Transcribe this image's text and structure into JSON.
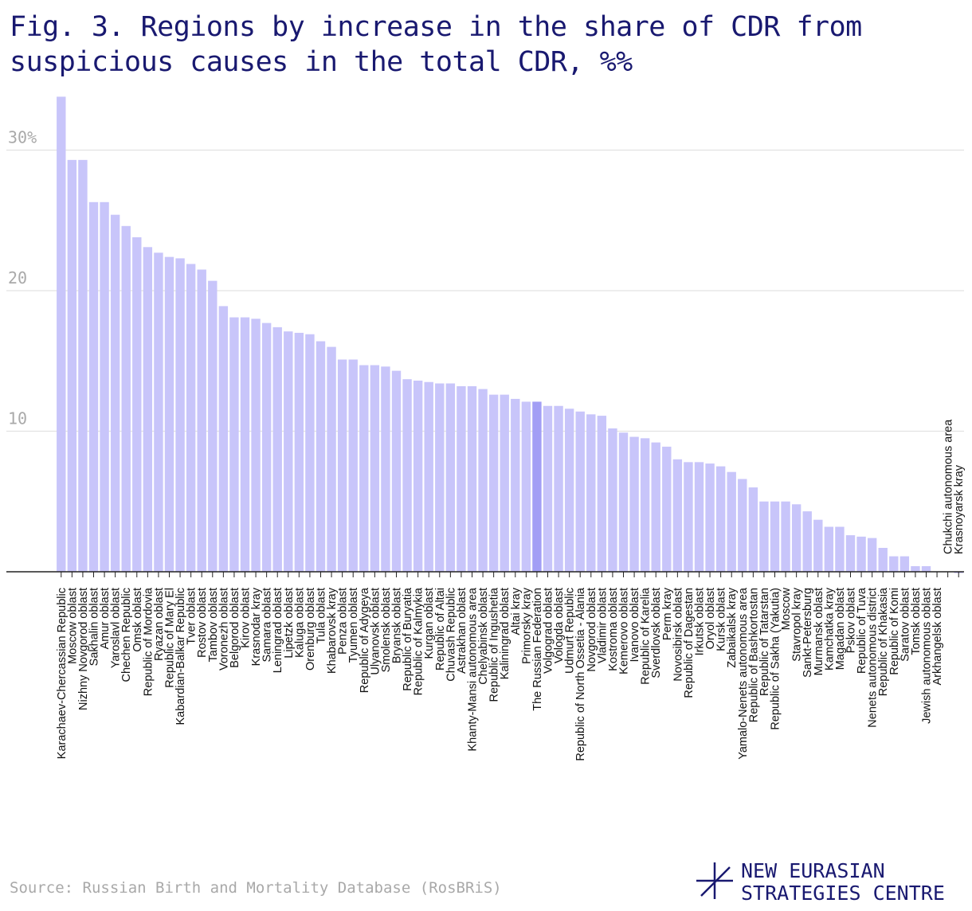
{
  "title": "Fig. 3. Regions by increase in the share of CDR from suspicious causes in the total CDR, %%",
  "source": "Source: Russian Birth and Mortality Database (RosBRiS)",
  "logo": {
    "line1": "NEW EURASIAN",
    "line2": "STRATEGIES CENTRE",
    "icon": "nesc-logo-icon"
  },
  "colors": {
    "bar": "#c8c5fa",
    "highlight": "#a29ef5",
    "title": "#191970",
    "grid": "#e2e2e2",
    "tick": "#a9a9a9",
    "axis": "#222222"
  },
  "chart_data": {
    "type": "bar",
    "title": "Fig. 3. Regions by increase in the share of CDR from suspicious causes in the total CDR, %%",
    "xlabel": "",
    "ylabel": "",
    "ylim": [
      0,
      34
    ],
    "yticks": [
      {
        "value": 10,
        "label": "10"
      },
      {
        "value": 20,
        "label": "20"
      },
      {
        "value": 30,
        "label": "30%"
      }
    ],
    "grid": true,
    "highlight": "The Russian Federation",
    "categories": [
      "Karachaev-Chercassian Republic",
      "Moscow oblast",
      "Nizhny Novgorod oblast",
      "Sakhalin oblast",
      "Amur oblast",
      "Yaroslavl oblast",
      "Chechen Republic",
      "Omsk oblast",
      "Republic of Mordovia",
      "Ryazan oblast",
      "Republic of Mary El",
      "Kabardian-Balkar Republic",
      "Tver oblast",
      "Rostov oblast",
      "Tambov oblast",
      "Voronezh oblast",
      "Belgorod oblast",
      "Kirov oblast",
      "Krasnodar kray",
      "Samara oblast",
      "Leningrad oblast",
      "Lipetzk oblast",
      "Kaluga oblast",
      "Orenburg oblast",
      "Tula oblast",
      "Khabarovsk kray",
      "Penza oblast",
      "Tyumen oblast",
      "Republic of Adygeya",
      "Ulyanovsk oblast",
      "Smolensk oblast",
      "Bryansk oblast",
      "Republic of Buryatia",
      "Republic of Kalmykia",
      "Kurgan oblast",
      "Republic of Altai",
      "Chuvash Republic",
      "Astrakhan oblast",
      "Khanty-Mansi autonomous area",
      "Chelyabinsk oblast",
      "Republic of Ingushetia",
      "Kaliningrad oblast",
      "Altai kray",
      "Primorsky kray",
      "The Russian Federation",
      "Volgograd oblast",
      "Vologda oblast",
      "Udmurt Republic",
      "Republic of North Ossetia - Alania",
      "Novgorod oblast",
      "Vladimir oblast",
      "Kostroma oblast",
      "Kemerovo oblast",
      "Ivanovo oblast",
      "Republic of Karelia",
      "Sverdlovsk oblast",
      "Perm kray",
      "Novosibirsk oblast",
      "Republic of Dagestan",
      "Irkutsk oblast",
      "Oryol oblast",
      "Kursk oblast",
      "Zabaikalsk kray",
      "Yamalo-Nenets autonomous area",
      "Republic of Bashkortostan",
      "Republic of Tatarstan",
      "Republic of Sakha (Yakutia)",
      "Moscow",
      "Stavropol kray",
      "Sankt-Petersburg",
      "Murmansk oblast",
      "Kamchatka kray",
      "Magadan oblast",
      "Pskov oblast",
      "Republic of Tuva",
      "Nenets autonomous district",
      "Republic of Khakasia",
      "Republic of Komi",
      "Saratov oblast",
      "Tomsk oblast",
      "Jewish autonomous oblast",
      "Arkhangelsk oblast",
      "Chukchi autonomous area",
      "Krasnoyarsk kray"
    ],
    "values": [
      33.8,
      29.3,
      29.3,
      26.3,
      26.3,
      25.4,
      24.6,
      23.8,
      23.1,
      22.7,
      22.4,
      22.3,
      21.9,
      21.5,
      20.7,
      18.9,
      18.1,
      18.1,
      18.0,
      17.7,
      17.4,
      17.1,
      17.0,
      16.9,
      16.4,
      16.0,
      15.1,
      15.1,
      14.7,
      14.7,
      14.6,
      14.3,
      13.7,
      13.6,
      13.5,
      13.4,
      13.4,
      13.2,
      13.2,
      13.0,
      12.6,
      12.6,
      12.3,
      12.1,
      12.1,
      11.8,
      11.8,
      11.6,
      11.4,
      11.2,
      11.1,
      10.2,
      9.9,
      9.6,
      9.5,
      9.2,
      8.9,
      8.0,
      7.8,
      7.8,
      7.7,
      7.5,
      7.1,
      6.6,
      6.0,
      5.0,
      5.0,
      5.0,
      4.8,
      4.3,
      3.7,
      3.2,
      3.2,
      2.6,
      2.5,
      2.4,
      1.7,
      1.1,
      1.1,
      0.4,
      0.4,
      0.0,
      0.0,
      -0.1
    ]
  }
}
